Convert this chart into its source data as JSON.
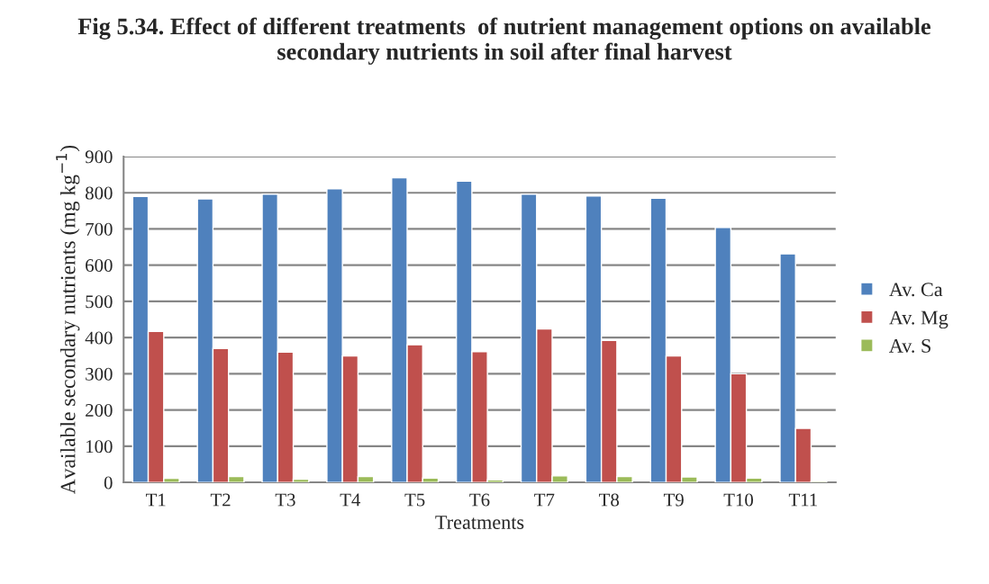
{
  "chart_data": {
    "type": "bar",
    "title": "Fig 5.34. Effect of different treatments  of nutrient management options on available secondary nutrients in soil after final harvest",
    "xlabel": "Treatments",
    "ylabel": "Available secondary nutrients (mg kg$^{−1}$)",
    "categories": [
      "T1",
      "T2",
      "T3",
      "T4",
      "T5",
      "T6",
      "T7",
      "T8",
      "T9",
      "T10",
      "T11"
    ],
    "series": [
      {
        "name": "Av. Ca",
        "color": "#4f81bd",
        "values": [
          790,
          783,
          796,
          811,
          841,
          832,
          796,
          791,
          785,
          704,
          631
        ]
      },
      {
        "name": "Av. Mg",
        "color": "#c0504d",
        "values": [
          417,
          370,
          360,
          349,
          380,
          361,
          424,
          392,
          349,
          300,
          149
        ]
      },
      {
        "name": "Av. S",
        "color": "#9bbb59",
        "values": [
          11,
          16,
          9,
          16,
          12,
          7,
          18,
          16,
          15,
          12,
          4
        ]
      }
    ],
    "ylim": [
      0,
      900
    ],
    "yticks": [
      0,
      100,
      200,
      300,
      400,
      500,
      600,
      700,
      800,
      900
    ],
    "grid": "y",
    "legend": "right"
  }
}
